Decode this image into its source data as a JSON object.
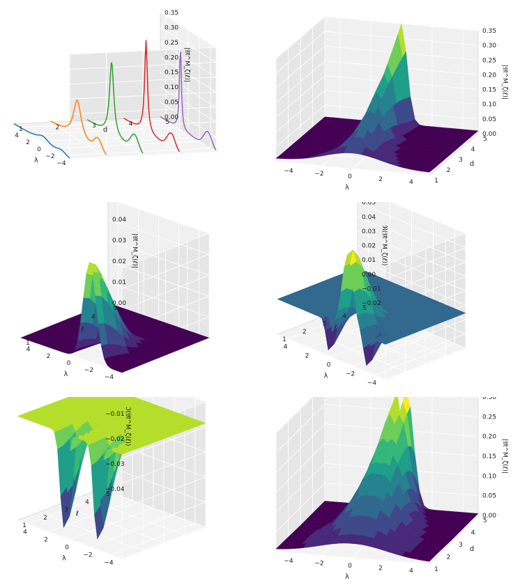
{
  "chart_data": [
    {
      "type": "line3d",
      "xlabel": "λ",
      "ylabel": "d",
      "zlabel": "|𝔐̃^M_ζ(ℓ)|",
      "xticks": [
        "−4",
        "−2",
        "0",
        "2",
        "4"
      ],
      "yticks": [
        "1",
        "2",
        "3",
        "4",
        "5"
      ],
      "zticks": [
        "0.00",
        "0.05",
        "0.10",
        "0.15",
        "0.20",
        "0.25",
        "0.30",
        "0.35"
      ],
      "xlim": [
        -5,
        5
      ],
      "ylim": [
        1,
        5
      ],
      "zlim": [
        0,
        0.35
      ],
      "series": [
        {
          "name": "d=1",
          "color": "#1f77b4",
          "d": 1,
          "peak": 0.02,
          "width": 1.3,
          "dip": 0.01
        },
        {
          "name": "d=2",
          "color": "#ff7f0e",
          "d": 2,
          "peak": 0.13,
          "width": 0.85,
          "dip": 0.04
        },
        {
          "name": "d=3",
          "color": "#2ca02c",
          "d": 3,
          "peak": 0.25,
          "width": 0.45,
          "dip": 0.05
        },
        {
          "name": "d=4",
          "color": "#d62728",
          "d": 4,
          "peak": 0.31,
          "width": 0.3,
          "dip": 0.05
        },
        {
          "name": "d=5",
          "color": "#9467bd",
          "d": 5,
          "peak": 0.29,
          "width": 0.2,
          "dip": 0.05
        }
      ]
    },
    {
      "type": "surface3d",
      "xlabel": "λ",
      "ylabel": "d",
      "zlabel": "|𝔐̃^M_ζ(ℓ)|",
      "xticks": [
        "−4",
        "−2",
        "0",
        "2",
        "4"
      ],
      "yticks": [
        "1",
        "2",
        "3",
        "4",
        "5"
      ],
      "zticks": [
        "0.00",
        "0.05",
        "0.10",
        "0.15",
        "0.20",
        "0.25",
        "0.30",
        "0.35"
      ],
      "xlim": [
        -5,
        5
      ],
      "ylim": [
        1,
        5
      ],
      "zlim": [
        0,
        0.35
      ],
      "colormap": "viridis"
    },
    {
      "type": "surface3d",
      "xlabel": "λ",
      "ylabel": "ℓ",
      "zlabel": "|𝔐̃^M_ζ(ℓ)|",
      "xticks": [
        "−4",
        "−2",
        "0",
        "2",
        "4"
      ],
      "yticks": [
        "1",
        "2",
        "3",
        "4",
        "5"
      ],
      "zticks": [
        "0.00",
        "0.01",
        "0.02",
        "0.03",
        "0.04",
        "0.05"
      ],
      "xlim": [
        -5,
        5
      ],
      "ylim": [
        1,
        5
      ],
      "zlim": [
        0,
        0.058
      ],
      "colormap": "viridis"
    },
    {
      "type": "surface3d",
      "xlabel": "λ",
      "ylabel": "ℓ",
      "zlabel": "ℜ(𝔐̃^M_ζ(ℓ))",
      "xticks": [
        "−4",
        "−2",
        "0",
        "2",
        "4"
      ],
      "yticks": [
        "1",
        "2",
        "3",
        "4",
        "5"
      ],
      "zticks": [
        "−0.02",
        "−0.01",
        "0.00",
        "0.01",
        "0.02",
        "0.03",
        "0.04",
        "0.05",
        "0.06"
      ],
      "xlim": [
        -5,
        5
      ],
      "ylim": [
        1,
        5
      ],
      "zlim": [
        -0.025,
        0.06
      ],
      "colormap": "viridis"
    },
    {
      "type": "surface3d",
      "xlabel": "λ",
      "ylabel": "ℓ",
      "zlabel": "ℑ(𝔐̃^M_ζ(ℓ))",
      "xticks": [
        "−4",
        "−2",
        "0",
        "2",
        "4"
      ],
      "yticks": [
        "1",
        "2",
        "3",
        "4",
        "5"
      ],
      "zticks": [
        "−0.04",
        "−0.03",
        "−0.02",
        "−0.01",
        "0.00",
        "0.01"
      ],
      "xlim": [
        -5,
        5
      ],
      "ylim": [
        1,
        5
      ],
      "zlim": [
        -0.04,
        0.013
      ],
      "colormap": "viridis"
    },
    {
      "type": "surface3d",
      "xlabel": "λ",
      "ylabel": "d",
      "zlabel": "|𝔐̃^M_ζ(ℓ)|",
      "xticks": [
        "−4",
        "−2",
        "0",
        "2",
        "4"
      ],
      "yticks": [
        "1",
        "2",
        "3",
        "4",
        "5"
      ],
      "zticks": [
        "0.00",
        "0.05",
        "0.10",
        "0.15",
        "0.20",
        "0.25",
        "0.30"
      ],
      "xlim": [
        -5,
        5
      ],
      "ylim": [
        1,
        5
      ],
      "zlim": [
        0,
        0.33
      ],
      "colormap": "viridis"
    }
  ]
}
